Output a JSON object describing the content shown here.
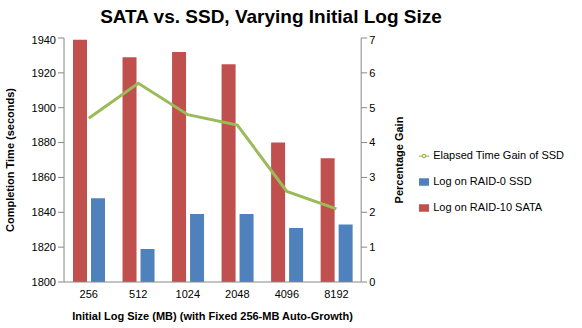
{
  "chart_data": {
    "type": "bar",
    "title": "SATA vs. SSD, Varying Initial Log Size",
    "x_label": "Initial Log Size (MB)  (with Fixed 256-MB Auto-Growth)",
    "y_label": "Completion Time (seconds)",
    "y2_label": "Percentage Gain",
    "categories": [
      "256",
      "512",
      "1024",
      "2048",
      "4096",
      "8192"
    ],
    "series": [
      {
        "name": "Log on RAID-10 SATA",
        "type": "bar",
        "color": "#C0504D",
        "values": [
          1939,
          1929,
          1932,
          1925,
          1880,
          1871
        ]
      },
      {
        "name": "Log on RAID-0 SSD",
        "type": "bar",
        "color": "#4F81BD",
        "values": [
          1848,
          1819,
          1839,
          1839,
          1831,
          1833
        ]
      },
      {
        "name": "Elapsed Time Gain of SSD",
        "type": "line",
        "axis": "y2",
        "color": "#9BBB59",
        "values": [
          4.7,
          5.7,
          4.8,
          4.5,
          2.6,
          2.1
        ]
      }
    ],
    "ylim": [
      1800,
      1940
    ],
    "yticks": [
      1800,
      1820,
      1840,
      1860,
      1880,
      1900,
      1920,
      1940
    ],
    "y2lim": [
      0,
      7
    ],
    "y2ticks": [
      0,
      1,
      2,
      3,
      4,
      5,
      6,
      7
    ],
    "grid": false,
    "legend": "right"
  }
}
